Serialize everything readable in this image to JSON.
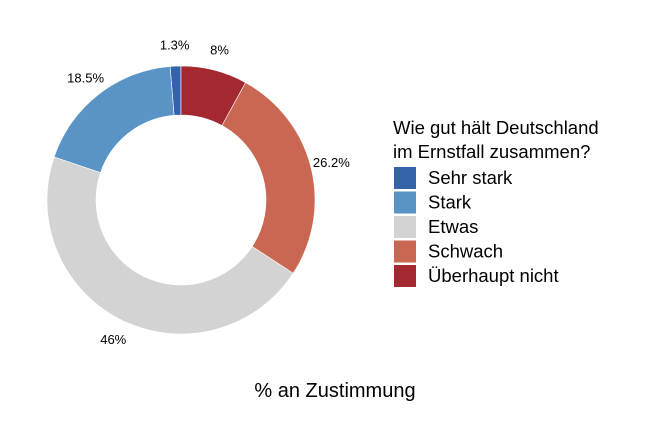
{
  "chart_data": {
    "type": "pie",
    "donut": true,
    "categories": [
      "Sehr stark",
      "Stark",
      "Etwas",
      "Schwach",
      "Überhaupt nicht"
    ],
    "values": [
      1.3,
      18.5,
      46,
      26.2,
      8
    ],
    "data_labels": [
      "1.3%",
      "18.5%",
      "46%",
      "26.2%",
      "8%"
    ],
    "colors": [
      "#3563a9",
      "#5a93c5",
      "#d3d3d3",
      "#c96753",
      "#a3282f"
    ],
    "legend_title": [
      "Wie gut hält Deutschland",
      "im Ernstfall zusammen?"
    ],
    "legend_placement": "right",
    "xlabel": "% an Zustimmung"
  }
}
